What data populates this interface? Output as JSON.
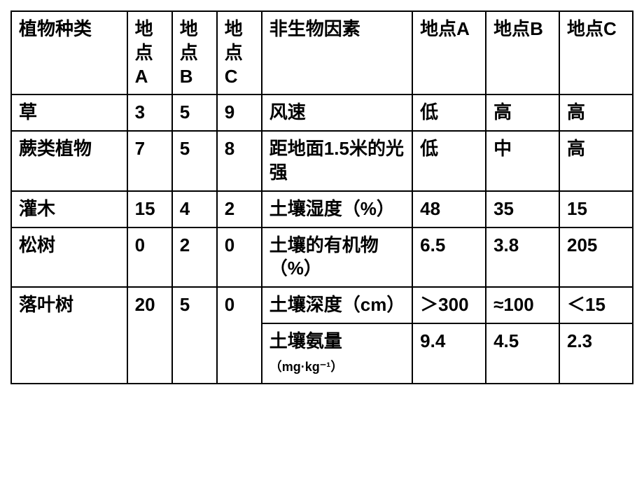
{
  "headers": {
    "plant_type": "植物种类",
    "site_a": "地点A",
    "site_b": "地点B",
    "site_c": "地点C",
    "abiotic_factor": "非生物因素"
  },
  "plants": {
    "grass": {
      "name": "草",
      "a": "3",
      "b": "5",
      "c": "9"
    },
    "fern": {
      "name": "蕨类植物",
      "a": "7",
      "b": "5",
      "c": "8"
    },
    "shrub": {
      "name": "灌木",
      "a": "15",
      "b": "4",
      "c": "2"
    },
    "pine": {
      "name": "松树",
      "a": "0",
      "b": "2",
      "c": "0"
    },
    "deciduous": {
      "name": "落叶树",
      "a": "20",
      "b": "5",
      "c": "0"
    }
  },
  "factors": {
    "wind": {
      "name": "风速",
      "a": "低",
      "b": "高",
      "c": "高"
    },
    "light": {
      "name": "距地面1.5米的光强",
      "a": "低",
      "b": "中",
      "c": "高"
    },
    "humidity": {
      "name": "土壤湿度（%）",
      "a": "48",
      "b": "35",
      "c": "15"
    },
    "organic": {
      "name": "土壤的有机物（%）",
      "a": "6.5",
      "b": "3.8",
      "c": "205"
    },
    "depth": {
      "name": "土壤深度（cm）",
      "a": "＞300",
      "b": "≈100",
      "c": "＜15"
    },
    "nitrogen": {
      "name": "土壤氨量",
      "unit": "（mg·kg⁻¹）",
      "a": "9.4",
      "b": "4.5",
      "c": "2.3"
    }
  },
  "colors": {
    "border": "#000000",
    "text": "#000000",
    "background": "#ffffff"
  }
}
